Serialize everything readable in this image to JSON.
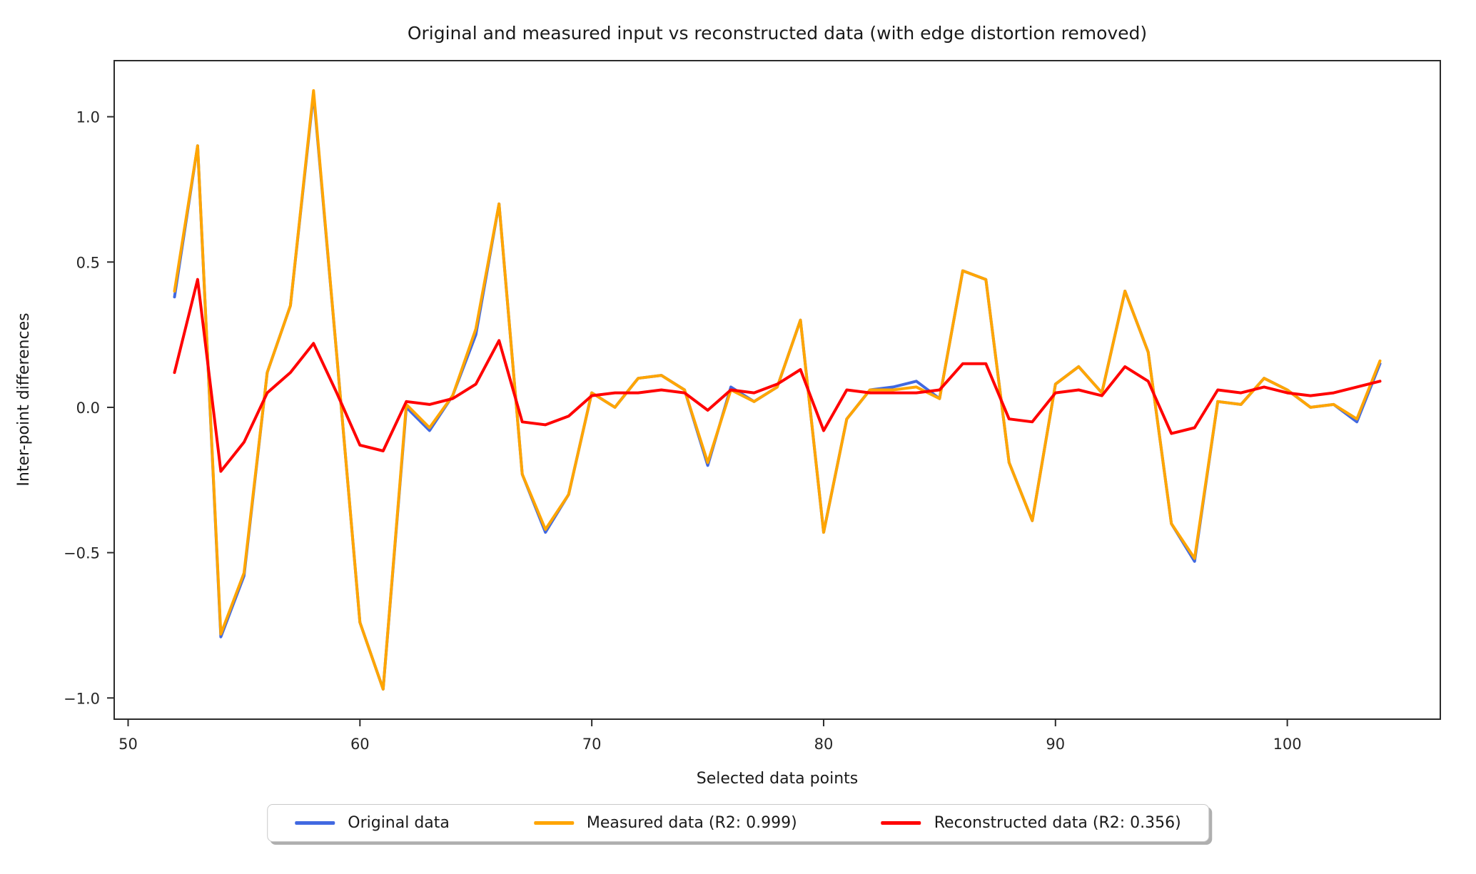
{
  "chart_data": {
    "type": "line",
    "title": "Original and measured input vs reconstructed data (with edge distortion removed)",
    "xlabel": "Selected data points",
    "ylabel": "Inter-point differences",
    "grid": false,
    "legend_position": "below-center",
    "xlim": [
      49.4,
      106.6
    ],
    "ylim": [
      -1.073,
      1.193
    ],
    "x_ticks": [
      50,
      60,
      70,
      80,
      90,
      100
    ],
    "y_ticks": [
      1.0,
      0.5,
      0.0,
      -0.5,
      -1.0
    ],
    "y_tick_labels": [
      "1.0",
      "0.5",
      "0.0",
      "−0.5",
      "−1.0"
    ],
    "x": [
      52,
      53,
      54,
      55,
      56,
      57,
      58,
      59,
      60,
      61,
      62,
      63,
      64,
      65,
      66,
      67,
      68,
      69,
      70,
      71,
      72,
      73,
      74,
      75,
      76,
      77,
      78,
      79,
      80,
      81,
      82,
      83,
      84,
      85,
      86,
      87,
      88,
      89,
      90,
      91,
      92,
      93,
      94,
      95,
      96,
      97,
      98,
      99,
      100,
      101,
      102,
      103,
      104
    ],
    "series": [
      {
        "name": "Original data",
        "color": "#4169e1",
        "values": [
          0.38,
          0.9,
          -0.79,
          -0.58,
          0.12,
          0.35,
          1.08,
          0.18,
          -0.74,
          -0.97,
          0.0,
          -0.08,
          0.04,
          0.25,
          0.7,
          -0.23,
          -0.43,
          -0.3,
          0.05,
          0.0,
          0.1,
          0.11,
          0.06,
          -0.2,
          0.07,
          0.02,
          0.07,
          0.3,
          -0.43,
          -0.04,
          0.06,
          0.07,
          0.09,
          0.03,
          0.47,
          0.44,
          -0.19,
          -0.39,
          0.08,
          0.14,
          0.05,
          0.4,
          0.19,
          -0.4,
          -0.53,
          0.02,
          0.01,
          0.1,
          0.06,
          0.0,
          0.01,
          -0.05,
          0.15
        ]
      },
      {
        "name": "Measured data (R2: 0.999)",
        "color": "#ffa500",
        "values": [
          0.4,
          0.9,
          -0.78,
          -0.57,
          0.12,
          0.35,
          1.09,
          0.18,
          -0.74,
          -0.97,
          0.01,
          -0.07,
          0.04,
          0.27,
          0.7,
          -0.23,
          -0.42,
          -0.3,
          0.05,
          0.0,
          0.1,
          0.11,
          0.06,
          -0.19,
          0.06,
          0.02,
          0.07,
          0.3,
          -0.43,
          -0.04,
          0.06,
          0.06,
          0.07,
          0.03,
          0.47,
          0.44,
          -0.19,
          -0.39,
          0.08,
          0.14,
          0.05,
          0.4,
          0.19,
          -0.4,
          -0.52,
          0.02,
          0.01,
          0.1,
          0.06,
          0.0,
          0.01,
          -0.04,
          0.16
        ]
      },
      {
        "name": "Reconstructed data (R2: 0.356)",
        "color": "#ff0000",
        "values": [
          0.12,
          0.44,
          -0.22,
          -0.12,
          0.05,
          0.12,
          0.22,
          0.05,
          -0.13,
          -0.15,
          0.02,
          0.01,
          0.03,
          0.08,
          0.23,
          -0.05,
          -0.06,
          -0.03,
          0.04,
          0.05,
          0.05,
          0.06,
          0.05,
          -0.01,
          0.06,
          0.05,
          0.08,
          0.13,
          -0.08,
          0.06,
          0.05,
          0.05,
          0.05,
          0.06,
          0.15,
          0.15,
          -0.04,
          -0.05,
          0.05,
          0.06,
          0.04,
          0.14,
          0.09,
          -0.09,
          -0.07,
          0.06,
          0.05,
          0.07,
          0.05,
          0.04,
          0.05,
          0.07,
          0.09
        ]
      }
    ]
  }
}
